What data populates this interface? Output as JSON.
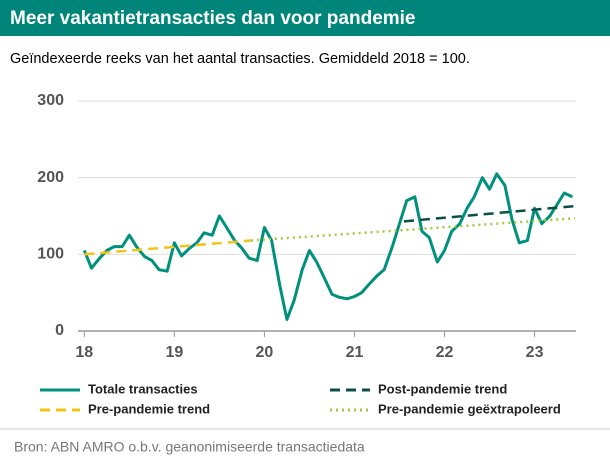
{
  "chart_data": {
    "type": "line",
    "title": "Meer vakantietransacties dan voor pandemie",
    "subtitle": "Geïndexeerde reeks van het aantal transacties. Gemiddeld 2018 = 100.",
    "source": "Bron: ABN AMRO o.b.v. geanonimiseerde transactiedata",
    "xlim": [
      17.93,
      23.46
    ],
    "xticks": [
      18,
      19,
      20,
      21,
      22,
      23
    ],
    "ylim": [
      0,
      300
    ],
    "yticks": [
      0,
      100,
      200,
      300
    ],
    "grid": true,
    "series": [
      {
        "name": "Totale transacties",
        "color": "#00917d",
        "style": "solid",
        "x": [
          18.0,
          18.08,
          18.17,
          18.25,
          18.33,
          18.42,
          18.5,
          18.58,
          18.67,
          18.75,
          18.83,
          18.92,
          19.0,
          19.08,
          19.17,
          19.25,
          19.33,
          19.42,
          19.5,
          19.58,
          19.67,
          19.75,
          19.83,
          19.92,
          20.0,
          20.08,
          20.17,
          20.25,
          20.33,
          20.42,
          20.5,
          20.58,
          20.67,
          20.75,
          20.83,
          20.92,
          21.0,
          21.08,
          21.17,
          21.25,
          21.33,
          21.42,
          21.5,
          21.58,
          21.67,
          21.75,
          21.83,
          21.92,
          22.0,
          22.08,
          22.17,
          22.25,
          22.33,
          22.42,
          22.5,
          22.58,
          22.67,
          22.75,
          22.83,
          22.92,
          23.0,
          23.08,
          23.17,
          23.25,
          23.33,
          23.42
        ],
        "values": [
          105,
          82,
          95,
          105,
          110,
          110,
          125,
          110,
          97,
          92,
          80,
          78,
          115,
          98,
          108,
          115,
          128,
          125,
          150,
          135,
          118,
          108,
          95,
          92,
          135,
          118,
          60,
          15,
          40,
          80,
          105,
          90,
          68,
          48,
          44,
          42,
          45,
          50,
          62,
          72,
          80,
          110,
          140,
          170,
          175,
          130,
          122,
          90,
          105,
          130,
          140,
          160,
          175,
          200,
          185,
          205,
          190,
          145,
          115,
          118,
          160,
          140,
          150,
          165,
          180,
          175
        ]
      },
      {
        "name": "Post-pandemie trend",
        "color": "#0b4f47",
        "style": "dashed",
        "x": [
          21.55,
          23.45
        ],
        "values": [
          143,
          163
        ]
      },
      {
        "name": "Pre-pandemie trend",
        "color": "#f0c419",
        "style": "dashed",
        "x": [
          18.0,
          19.85
        ],
        "values": [
          100,
          118
        ]
      },
      {
        "name": "Pre-pandemie geëxtrapoleerd",
        "color": "#9dcb3c",
        "style": "dotted",
        "x": [
          19.85,
          23.45
        ],
        "values": [
          118,
          147
        ]
      }
    ]
  }
}
